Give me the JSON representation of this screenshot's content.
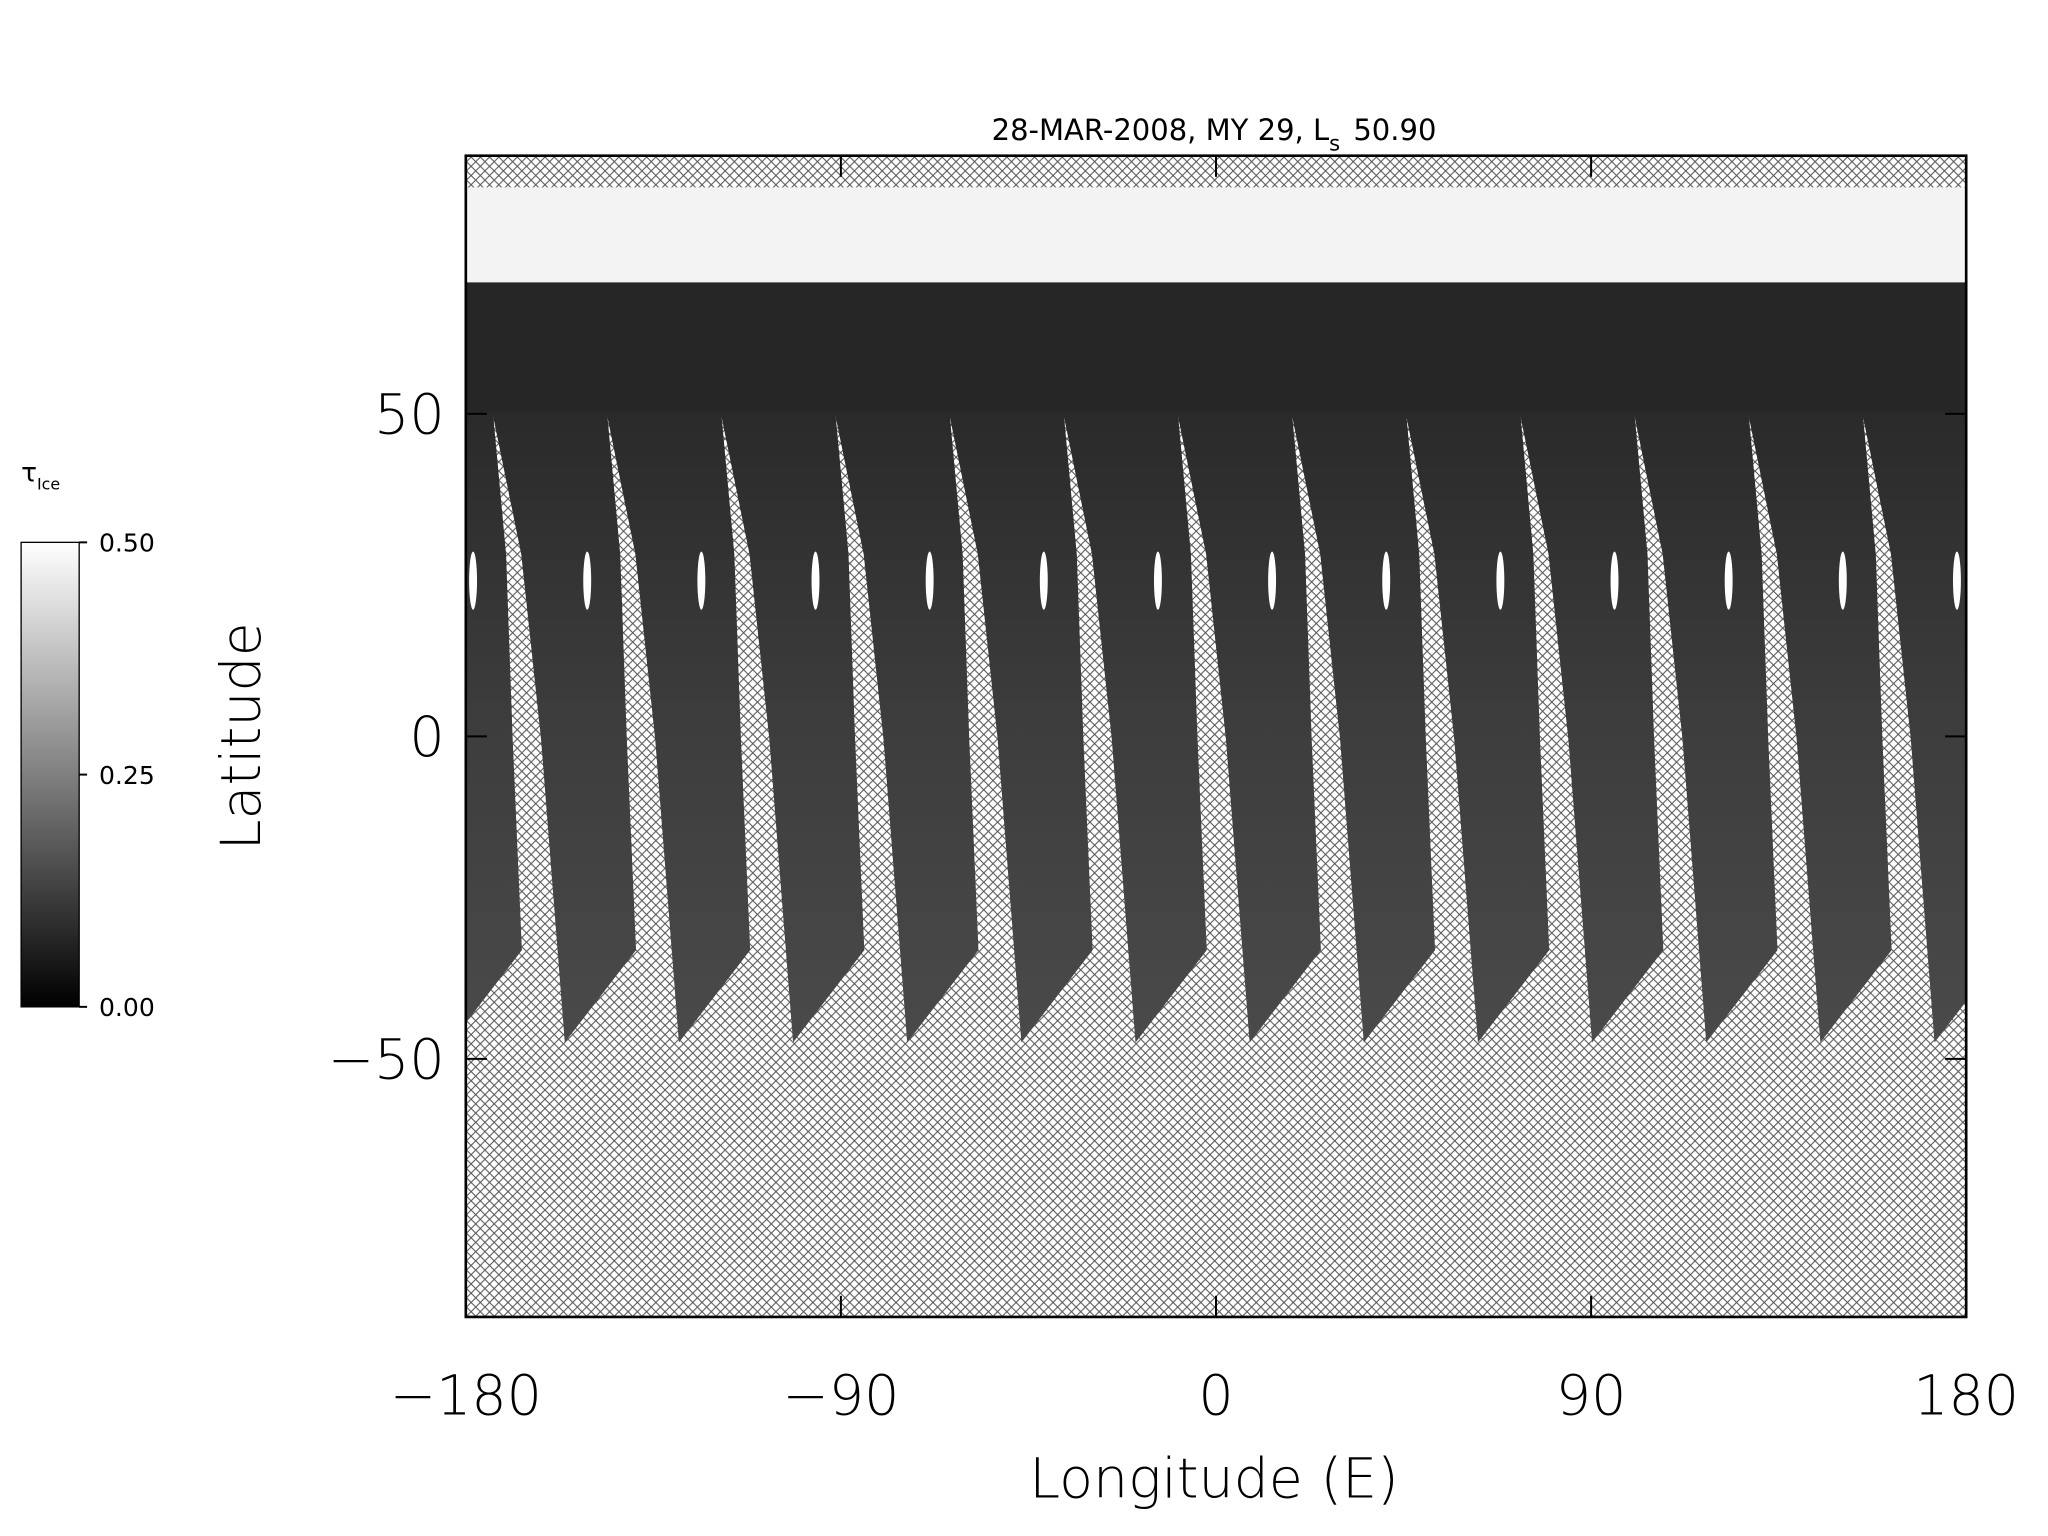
{
  "chart_data": {
    "type": "map",
    "title": {
      "text": "28-MAR-2008, MY 29,  L",
      "subscript": "s",
      "suffix": "50.90"
    },
    "x_label": "Longitude (E)",
    "y_label": "Latitude",
    "xlim": [
      -180,
      180
    ],
    "xticks": [
      {
        "value": -180,
        "label": "−180"
      },
      {
        "value": -90,
        "label": "−90"
      },
      0,
      90,
      180
    ],
    "ylim": [
      -90,
      90
    ],
    "yticks": [
      {
        "value": -50,
        "label": "−50"
      },
      0,
      50
    ],
    "colorbar": {
      "label": {
        "text": "τ",
        "subscript": "Ice"
      },
      "lim": [
        0,
        0.5
      ],
      "ticks": [
        {
          "value": 0,
          "label": "0.00"
        },
        {
          "value": 0.25,
          "label": "0.25"
        },
        {
          "value": 0.5,
          "label": "0.50"
        }
      ]
    }
  }
}
